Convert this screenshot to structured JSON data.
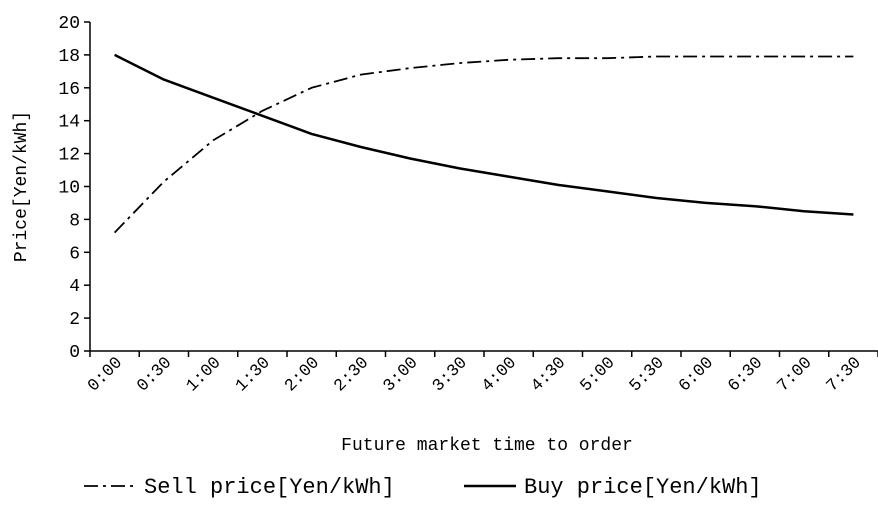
{
  "chart_data": {
    "type": "line",
    "title": "",
    "xlabel": "Future market time to order",
    "ylabel": "Price[Yen/kWh]",
    "ylim": [
      0,
      20
    ],
    "yticks": [
      "0",
      "2",
      "4",
      "6",
      "8",
      "10",
      "12",
      "14",
      "16",
      "18",
      "20"
    ],
    "categories": [
      "0:00",
      "0:30",
      "1:00",
      "1:30",
      "2:00",
      "2:30",
      "3:00",
      "3:30",
      "4:00",
      "4:30",
      "5:00",
      "5:30",
      "6:00",
      "6:30",
      "7:00",
      "7:30"
    ],
    "series": [
      {
        "name": "Sell price[Yen/kWh]",
        "style": "dash-dot",
        "color": "#000000",
        "values": [
          7.2,
          10.3,
          12.8,
          14.6,
          16.0,
          16.8,
          17.2,
          17.5,
          17.7,
          17.8,
          17.8,
          17.9,
          17.9,
          17.9,
          17.9,
          17.9
        ]
      },
      {
        "name": "Buy price[Yen/kWh]",
        "style": "solid",
        "color": "#000000",
        "values": [
          18.0,
          16.5,
          15.4,
          14.3,
          13.2,
          12.4,
          11.7,
          11.1,
          10.6,
          10.1,
          9.7,
          9.3,
          9.0,
          8.8,
          8.5,
          8.3
        ]
      }
    ],
    "grid": false,
    "legend_position": "bottom"
  }
}
